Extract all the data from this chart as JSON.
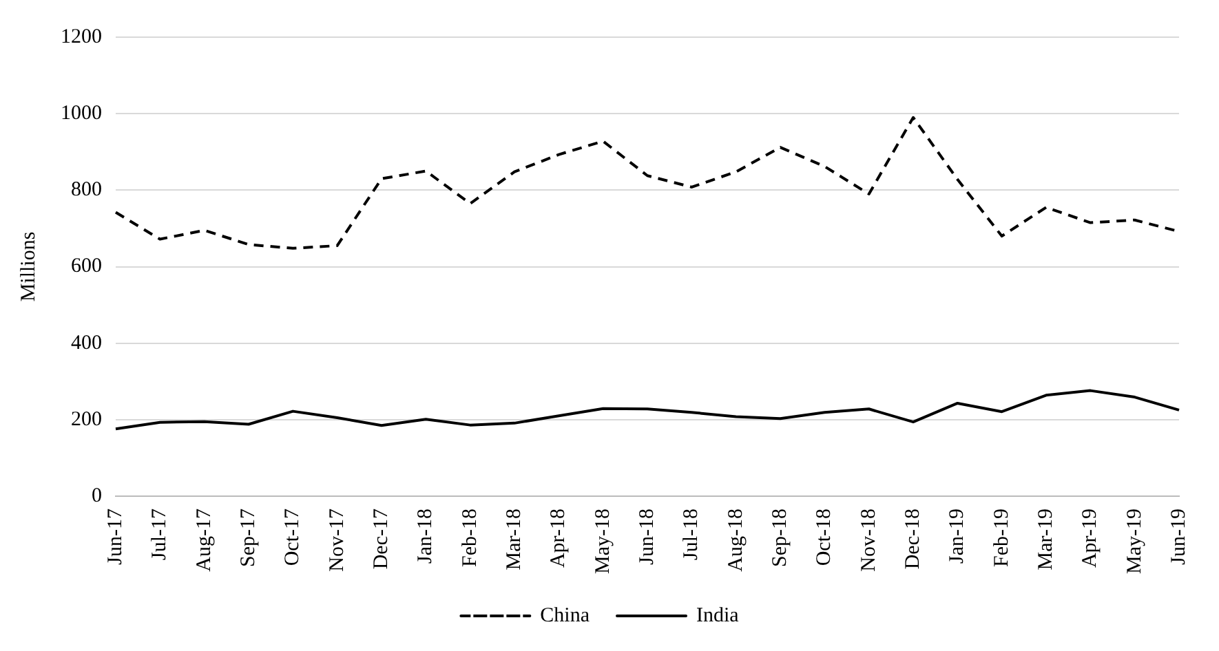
{
  "chart_data": {
    "type": "line",
    "ylabel": "Millions",
    "categories": [
      "Jun-17",
      "Jul-17",
      "Aug-17",
      "Sep-17",
      "Oct-17",
      "Nov-17",
      "Dec-17",
      "Jan-18",
      "Feb-18",
      "Mar-18",
      "Apr-18",
      "May-18",
      "Jun-18",
      "Jul-18",
      "Aug-18",
      "Sep-18",
      "Oct-18",
      "Nov-18",
      "Dec-18",
      "Jan-19",
      "Feb-19",
      "Mar-19",
      "Apr-19",
      "May-19",
      "Jun-19"
    ],
    "series": [
      {
        "name": "China",
        "color": "#000000",
        "line_style": "dashed",
        "values": [
          742,
          672,
          695,
          658,
          648,
          655,
          830,
          850,
          765,
          848,
          893,
          928,
          838,
          808,
          848,
          912,
          862,
          790,
          990,
          828,
          680,
          755,
          715,
          722,
          692
        ]
      },
      {
        "name": "India",
        "color": "#000000",
        "line_style": "solid",
        "values": [
          176,
          193,
          195,
          188,
          222,
          205,
          185,
          201,
          186,
          191,
          210,
          229,
          228,
          219,
          208,
          203,
          219,
          228,
          194,
          243,
          221,
          264,
          276,
          259,
          225
        ]
      }
    ],
    "ylim": [
      0,
      1200
    ],
    "yticks": [
      0,
      200,
      400,
      600,
      800,
      1000,
      1200
    ],
    "grid": "y",
    "legend": "bottom",
    "marker": "none"
  }
}
